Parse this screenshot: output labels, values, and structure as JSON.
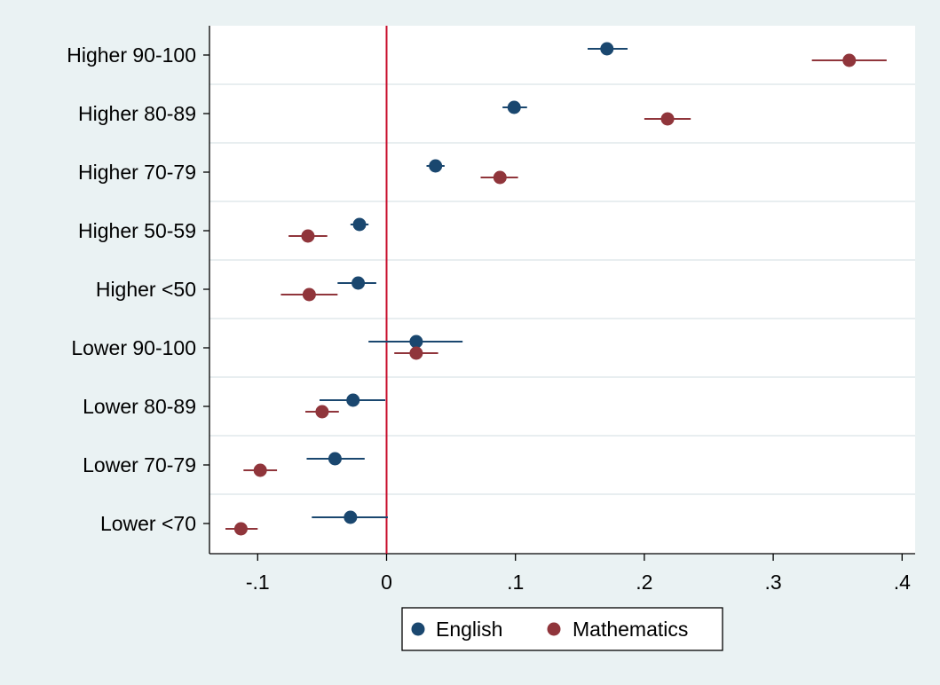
{
  "chart_data": {
    "type": "scatter",
    "subtype": "coefficient-plot-horizontal",
    "title": "",
    "xlabel": "",
    "ylabel": "",
    "categories": [
      "Higher 90-100",
      "Higher 80-89",
      "Higher 70-79",
      "Higher 50-59",
      "Higher <50",
      "Lower 90-100",
      "Lower 80-89",
      "Lower 70-79",
      "Lower <70"
    ],
    "xlim": [
      -0.138,
      0.41
    ],
    "xticks": [
      -0.1,
      0,
      0.1,
      0.2,
      0.3,
      0.4
    ],
    "xtick_labels": [
      "-.1",
      "0",
      ".1",
      ".2",
      ".3",
      ".4"
    ],
    "reference_line": {
      "x": 0,
      "color": "#c8102e"
    },
    "grid": "horizontal",
    "legend_position": "bottom",
    "series": [
      {
        "name": "English",
        "color": "#1a476f",
        "points": [
          {
            "estimate": 0.171,
            "lower": 0.156,
            "upper": 0.187
          },
          {
            "estimate": 0.099,
            "lower": 0.09,
            "upper": 0.109
          },
          {
            "estimate": 0.038,
            "lower": 0.031,
            "upper": 0.045
          },
          {
            "estimate": -0.021,
            "lower": -0.028,
            "upper": -0.014
          },
          {
            "estimate": -0.022,
            "lower": -0.038,
            "upper": -0.008
          },
          {
            "estimate": 0.023,
            "lower": -0.014,
            "upper": 0.059
          },
          {
            "estimate": -0.026,
            "lower": -0.052,
            "upper": -0.001
          },
          {
            "estimate": -0.04,
            "lower": -0.062,
            "upper": -0.017
          },
          {
            "estimate": -0.028,
            "lower": -0.058,
            "upper": 0.001
          }
        ]
      },
      {
        "name": "Mathematics",
        "color": "#90353b",
        "points": [
          {
            "estimate": 0.359,
            "lower": 0.33,
            "upper": 0.388
          },
          {
            "estimate": 0.218,
            "lower": 0.2,
            "upper": 0.236
          },
          {
            "estimate": 0.088,
            "lower": 0.073,
            "upper": 0.102
          },
          {
            "estimate": -0.061,
            "lower": -0.076,
            "upper": -0.046
          },
          {
            "estimate": -0.06,
            "lower": -0.082,
            "upper": -0.038
          },
          {
            "estimate": 0.023,
            "lower": 0.006,
            "upper": 0.04
          },
          {
            "estimate": -0.05,
            "lower": -0.063,
            "upper": -0.037
          },
          {
            "estimate": -0.098,
            "lower": -0.111,
            "upper": -0.085
          },
          {
            "estimate": -0.113,
            "lower": -0.125,
            "upper": -0.1
          }
        ]
      }
    ]
  }
}
